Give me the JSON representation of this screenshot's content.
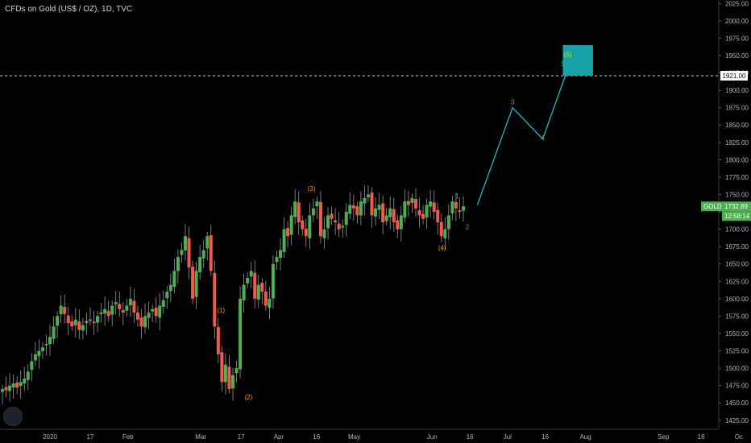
{
  "header": {
    "title": "CFDs on Gold (US$ / OZ), 1D, TVC"
  },
  "colors": {
    "up": "#26a69a",
    "down": "#ef5350",
    "bull": "#4caf50",
    "bear": "#f0594e",
    "projection": "#26c6da",
    "target_box": "#17a2a8",
    "badge": "#4caf50"
  },
  "chart_data": {
    "type": "candlestick",
    "symbol": "GOLD",
    "price": "1732.89",
    "countdown": "12:58:14",
    "level_label": "1921.00",
    "level_value": 1921,
    "ylim": [
      1412,
      2030
    ],
    "y_ticks": [
      "2025.00",
      "2000.00",
      "1975.00",
      "1950.00",
      "1925.00",
      "1900.00",
      "1875.00",
      "1850.00",
      "1825.00",
      "1800.00",
      "1775.00",
      "1750.00",
      "1725.00",
      "1700.00",
      "1675.00",
      "1650.00",
      "1625.00",
      "1600.00",
      "1575.00",
      "1550.00",
      "1525.00",
      "1500.00",
      "1475.00",
      "1450.00",
      "1425.00"
    ],
    "x_ticks": [
      "2020",
      "17",
      "Feb",
      "Mar",
      "17",
      "Apr",
      "16",
      "May",
      "Jun",
      "16",
      "Jul",
      "16",
      "Aug",
      "Sep",
      "16",
      "Oc"
    ],
    "closes": [
      1470,
      1468,
      1475,
      1478,
      1472,
      1480,
      1485,
      1495,
      1510,
      1520,
      1525,
      1530,
      1535,
      1545,
      1560,
      1575,
      1590,
      1578,
      1565,
      1560,
      1570,
      1555,
      1562,
      1568,
      1570,
      1565,
      1575,
      1580,
      1585,
      1575,
      1590,
      1595,
      1585,
      1580,
      1590,
      1600,
      1580,
      1570,
      1560,
      1575,
      1580,
      1585,
      1575,
      1590,
      1598,
      1610,
      1620,
      1640,
      1660,
      1670,
      1690,
      1645,
      1600,
      1640,
      1660,
      1670,
      1690,
      1640,
      1560,
      1520,
      1480,
      1505,
      1470,
      1490,
      1500,
      1600,
      1620,
      1630,
      1640,
      1600,
      1620,
      1610,
      1590,
      1600,
      1650,
      1660,
      1670,
      1700,
      1690,
      1720,
      1740,
      1710,
      1700,
      1690,
      1720,
      1730,
      1740,
      1690,
      1700,
      1720,
      1715,
      1710,
      1700,
      1705,
      1725,
      1735,
      1730,
      1720,
      1740,
      1745,
      1750,
      1720,
      1730,
      1735,
      1710,
      1720,
      1730,
      1710,
      1700,
      1720,
      1740,
      1735,
      1745,
      1730,
      1720,
      1715,
      1735,
      1740,
      1725,
      1710,
      1690,
      1700,
      1720,
      1740,
      1730,
      1725,
      1732.89
    ],
    "waves": [
      {
        "label": "(1)",
        "date": "Mar 9",
        "value": 1580,
        "group": "orange"
      },
      {
        "label": "(2)",
        "date": "Mar 20",
        "value": 1455,
        "group": "orange"
      },
      {
        "label": "(3)",
        "date": "Apr 14",
        "value": 1755,
        "group": "orange"
      },
      {
        "label": "(4)",
        "date": "Jun 5",
        "value": 1670,
        "group": "orange"
      },
      {
        "label": "1",
        "date": "Jun 11",
        "value": 1745,
        "group": "green"
      },
      {
        "label": "2",
        "date": "Jun 15",
        "value": 1700,
        "group": "green"
      },
      {
        "label": "3",
        "date": "Jul 3",
        "value": 1880,
        "group": "green"
      },
      {
        "label": "4",
        "date": "Jul 15",
        "value": 1828,
        "group": "green"
      },
      {
        "label": "5",
        "date": "Jul 23",
        "value": 1935,
        "group": "green"
      },
      {
        "label": "(5)",
        "date": "Jul 25",
        "value": 1948,
        "group": "yellow"
      }
    ],
    "projection": [
      {
        "date": "Jun 19",
        "value": 1735
      },
      {
        "date": "Jul 3",
        "value": 1875
      },
      {
        "date": "Jul 15",
        "value": 1830
      },
      {
        "date": "Jul 24",
        "value": 1921
      }
    ],
    "target_zone": {
      "from": "Jul 23",
      "to": "Aug 4",
      "low": 1921,
      "high": 1965
    }
  }
}
